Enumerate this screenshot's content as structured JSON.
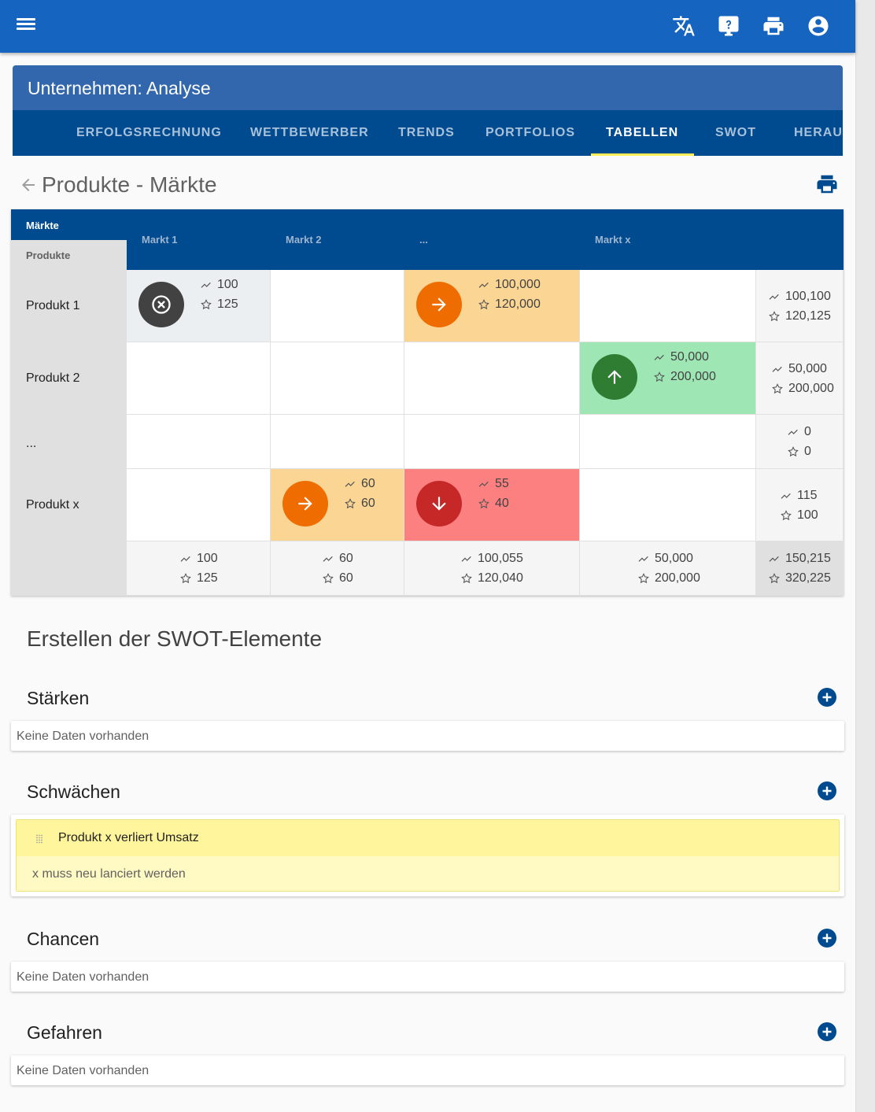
{
  "appbar": {
    "icons": [
      "menu-icon",
      "translate-icon",
      "help-icon",
      "print-icon",
      "account-icon"
    ]
  },
  "card": {
    "title": "Unternehmen: Analyse",
    "tabs": [
      {
        "label": "ERFOLGSRECHNUNG",
        "active": false
      },
      {
        "label": "WETTBEWERBER",
        "active": false
      },
      {
        "label": "TRENDS",
        "active": false
      },
      {
        "label": "PORTFOLIOS",
        "active": false
      },
      {
        "label": "TABELLEN",
        "active": true
      },
      {
        "label": "SWOT",
        "active": false
      },
      {
        "label": "HERAU",
        "active": false
      }
    ]
  },
  "subhead": {
    "title": "Produkte - Märkte"
  },
  "matrix": {
    "corner_markets": "Märkte",
    "corner_products": "Produkte",
    "columns": [
      "Markt 1",
      "Markt 2",
      "...",
      "Markt x"
    ],
    "rows": [
      "Produkt 1",
      "Produkt 2",
      "...",
      "Produkt x"
    ],
    "cells": {
      "p1_m1": {
        "trend": "100",
        "star": "125",
        "icon": "cancel-icon"
      },
      "p1_m3": {
        "trend": "100,000",
        "star": "120,000",
        "icon": "arrow-right-icon"
      },
      "p2_m4": {
        "trend": "50,000",
        "star": "200,000",
        "icon": "arrow-up-icon"
      },
      "px_m2": {
        "trend": "60",
        "star": "60",
        "icon": "arrow-right-icon"
      },
      "px_m3": {
        "trend": "55",
        "star": "40",
        "icon": "arrow-down-icon"
      }
    },
    "row_totals": [
      {
        "trend": "100,100",
        "star": "120,125"
      },
      {
        "trend": "50,000",
        "star": "200,000"
      },
      {
        "trend": "0",
        "star": "0"
      },
      {
        "trend": "115",
        "star": "100"
      }
    ],
    "col_totals": [
      {
        "trend": "100",
        "star": "125"
      },
      {
        "trend": "60",
        "star": "60"
      },
      {
        "trend": "100,055",
        "star": "120,040"
      },
      {
        "trend": "50,000",
        "star": "200,000"
      }
    ],
    "grand_total": {
      "trend": "150,215",
      "star": "320,225"
    },
    "colors": {
      "neutral": "#eceff1",
      "orange": "#fad594",
      "green": "#9ee6b4",
      "red": "#fd8080",
      "orange_circle": "#ef6c00",
      "green_circle": "#2e7d32",
      "red_circle": "#c62828",
      "dark_circle": "#424242"
    }
  },
  "swot": {
    "title": "Erstellen der SWOT-Elemente",
    "sections": [
      {
        "title": "Stärken",
        "empty": "Keine Daten vorhanden"
      },
      {
        "title": "Schwächen",
        "items": [
          {
            "title": "Produkt x verliert Umsatz",
            "text": "x muss neu lanciert werden"
          }
        ]
      },
      {
        "title": "Chancen",
        "empty": "Keine Daten vorhanden"
      },
      {
        "title": "Gefahren",
        "empty": "Keine Daten vorhanden"
      }
    ]
  }
}
